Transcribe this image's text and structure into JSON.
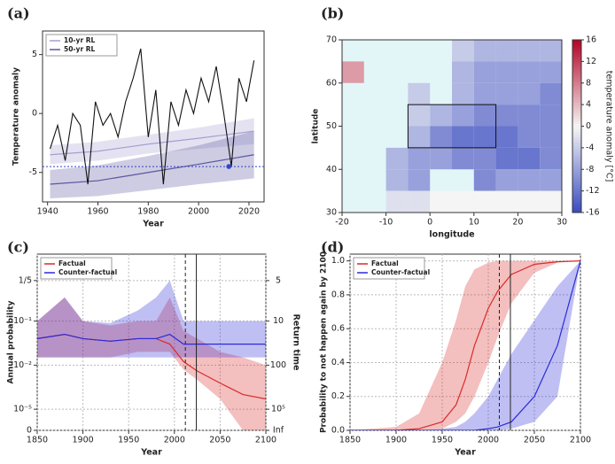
{
  "chart_data": [
    {
      "type": "line",
      "label": "(a)",
      "xlabel": "Year",
      "ylabel": "Temperature anomaly",
      "x": [
        1941,
        1944,
        1947,
        1950,
        1953,
        1956,
        1959,
        1962,
        1965,
        1968,
        1971,
        1974,
        1977,
        1980,
        1983,
        1986,
        1989,
        1992,
        1995,
        1998,
        2001,
        2004,
        2007,
        2010,
        2013,
        2016,
        2019,
        2022
      ],
      "values": [
        -3,
        -1,
        -4,
        0,
        -1,
        -6,
        1,
        -1,
        0,
        -2,
        1,
        3,
        5.5,
        -2,
        2,
        -6,
        1,
        -1,
        2,
        0,
        3,
        1,
        4,
        0,
        -4.5,
        3,
        1,
        4.5
      ],
      "color": "#111111",
      "series": [
        {
          "name": "10-yr RL",
          "color": "#a59fd0",
          "x": [
            1941,
            1960,
            1980,
            2000,
            2022
          ],
          "values": [
            -3.5,
            -3.2,
            -2.6,
            -2.1,
            -1.5
          ],
          "lower": [
            -4.3,
            -4,
            -3.4,
            -3,
            -2.6
          ],
          "upper": [
            -2.7,
            -2.4,
            -1.8,
            -1.2,
            -0.4
          ]
        },
        {
          "name": "50-yr RL",
          "color": "#5b55a0",
          "x": [
            1941,
            1960,
            1980,
            2000,
            2022
          ],
          "values": [
            -6,
            -5.7,
            -5,
            -4.3,
            -3.5
          ],
          "lower": [
            -7.2,
            -7,
            -6.5,
            -6,
            -5.5
          ],
          "upper": [
            -4.8,
            -4.4,
            -3.6,
            -2.7,
            -1.5
          ]
        }
      ],
      "hline": -4.5,
      "marker": {
        "x": 2012,
        "y": -4.5,
        "color": "#3344cc"
      },
      "xlim": [
        1938,
        2026
      ],
      "xticks": [
        1940,
        1960,
        1980,
        2000,
        2020
      ],
      "ylim": [
        -7.5,
        7
      ],
      "yticks": [
        -5,
        0,
        5
      ],
      "grid": false,
      "legend": "top-left"
    },
    {
      "type": "map",
      "label": "(b)",
      "xlabel": "longitude",
      "ylabel": "latitude",
      "clabel": "temperature anomaly [°C]",
      "lon_edges": [
        -20,
        -15,
        -10,
        -5,
        0,
        5,
        10,
        15,
        20,
        25,
        30
      ],
      "lat_edges": [
        70,
        65,
        60,
        55,
        50,
        45,
        40,
        35,
        30
      ],
      "cells": [
        [
          null,
          null,
          null,
          null,
          null,
          -4,
          -6,
          -6,
          -6,
          -6
        ],
        [
          6,
          null,
          null,
          null,
          null,
          -6,
          -8,
          -8,
          -8,
          -8
        ],
        [
          null,
          null,
          null,
          -4,
          null,
          -6,
          -8,
          -8,
          -8,
          -10
        ],
        [
          null,
          null,
          null,
          -4,
          -6,
          -8,
          -10,
          -10,
          -10,
          -10
        ],
        [
          null,
          null,
          null,
          -6,
          -10,
          -12,
          -12,
          -12,
          -10,
          -10
        ],
        [
          null,
          null,
          -6,
          -8,
          -8,
          -10,
          -10,
          -12,
          -12,
          -10
        ],
        [
          null,
          null,
          -6,
          -8,
          null,
          null,
          -10,
          -8,
          -8,
          -8
        ],
        [
          null,
          null,
          -2,
          -2,
          0,
          0,
          0,
          0,
          0,
          0
        ]
      ],
      "box": {
        "lon": [
          -5,
          15
        ],
        "lat": [
          45,
          55
        ]
      },
      "xlim": [
        -20,
        30
      ],
      "xticks": [
        -20,
        -10,
        0,
        10,
        20,
        30
      ],
      "ylim": [
        30,
        70
      ],
      "yticks": [
        30,
        40,
        50,
        60,
        70
      ],
      "clim": [
        -16,
        16
      ],
      "cticks": [
        -16,
        -12,
        -8,
        -4,
        0,
        4,
        8,
        12,
        16
      ]
    },
    {
      "type": "line",
      "label": "(c)",
      "xlabel": "Year",
      "ylabel": "Annual probability",
      "y2label": "Return time",
      "yscale": "log",
      "x": [
        1850,
        1880,
        1900,
        1930,
        1960,
        1980,
        1995,
        2010,
        2025,
        2050,
        2075,
        2100
      ],
      "series": [
        {
          "name": "Factual",
          "color": "#d92b2b",
          "values": [
            0.04,
            0.05,
            0.04,
            0.035,
            0.04,
            0.04,
            0.03,
            0.012,
            0.004,
            0.0006,
            0.0001,
            5e-05
          ],
          "lower": [
            0.015,
            0.015,
            0.015,
            0.015,
            0.02,
            0.02,
            0.02,
            0.005,
            0.001,
            5e-05,
            0,
            0
          ],
          "upper": [
            0.1,
            0.15,
            0.1,
            0.08,
            0.1,
            0.1,
            0.15,
            0.06,
            0.04,
            0.02,
            0.015,
            0.01
          ]
        },
        {
          "name": "Counter-factual",
          "color": "#2b2bd9",
          "values": [
            0.04,
            0.05,
            0.04,
            0.035,
            0.04,
            0.04,
            0.05,
            0.03,
            0.03,
            0.03,
            0.03,
            0.03
          ],
          "lower": [
            0.015,
            0.015,
            0.015,
            0.015,
            0.015,
            0.015,
            0.015,
            0.015,
            0.015,
            0.015,
            0.015,
            0.015
          ],
          "upper": [
            0.1,
            0.15,
            0.1,
            0.09,
            0.12,
            0.15,
            0.2,
            0.1,
            0.1,
            0.1,
            0.1,
            0.1
          ]
        }
      ],
      "vlines": [
        {
          "x": 2012,
          "style": "dashed"
        },
        {
          "x": 2024,
          "style": "solid"
        }
      ],
      "xlim": [
        1850,
        2100
      ],
      "xticks": [
        1850,
        1900,
        1950,
        2000,
        2050,
        2100
      ],
      "yticks": [
        {
          "value": 0.2,
          "label": "1/5"
        },
        {
          "value": 0.1,
          "label": "10⁻¹"
        },
        {
          "value": 0.01,
          "label": "10⁻²"
        },
        {
          "value": 1e-05,
          "label": "10⁻⁵"
        },
        0
      ],
      "y2ticks": [
        5,
        10,
        100,
        {
          "value": 100000,
          "label": "10⁵"
        },
        {
          "value": null,
          "label": "Inf"
        }
      ],
      "grid": true,
      "legend": "top-left"
    },
    {
      "type": "line",
      "label": "(d)",
      "xlabel": "Year",
      "ylabel": "Probability to not happen again by 2100",
      "x": [
        1850,
        1900,
        1925,
        1950,
        1965,
        1975,
        1985,
        2000,
        2010,
        2025,
        2050,
        2075,
        2100
      ],
      "series": [
        {
          "name": "Factual",
          "color": "#d92b2b",
          "values": [
            0,
            0,
            0.01,
            0.05,
            0.15,
            0.3,
            0.5,
            0.72,
            0.82,
            0.92,
            0.98,
            0.995,
            1
          ],
          "lower": [
            0,
            0,
            0,
            0.01,
            0.05,
            0.1,
            0.2,
            0.4,
            0.55,
            0.75,
            0.93,
            0.99,
            1
          ],
          "upper": [
            0,
            0.02,
            0.1,
            0.4,
            0.65,
            0.85,
            0.95,
            0.99,
            1,
            1,
            1,
            1,
            1
          ]
        },
        {
          "name": "Counter-factual",
          "color": "#2b2bd9",
          "values": [
            0,
            0,
            0,
            0,
            0,
            0,
            0,
            0.01,
            0.02,
            0.05,
            0.2,
            0.5,
            1
          ],
          "lower": [
            0,
            0,
            0,
            0,
            0,
            0,
            0,
            0,
            0,
            0.01,
            0.05,
            0.2,
            1
          ],
          "upper": [
            0,
            0,
            0,
            0.01,
            0.02,
            0.05,
            0.1,
            0.2,
            0.3,
            0.45,
            0.65,
            0.85,
            1
          ]
        }
      ],
      "vlines": [
        {
          "x": 2012,
          "style": "dashed"
        },
        {
          "x": 2024,
          "style": "solid"
        }
      ],
      "xlim": [
        1850,
        2100
      ],
      "xticks": [
        1850,
        1900,
        1950,
        2000,
        2050,
        2100
      ],
      "ylim": [
        0,
        1.04
      ],
      "yticks": [
        {
          "value": 0,
          "label": "0.0"
        },
        0.2,
        0.4,
        0.6,
        0.8,
        {
          "value": 1,
          "label": "1.0"
        }
      ],
      "grid": true,
      "legend": "top-left"
    }
  ]
}
